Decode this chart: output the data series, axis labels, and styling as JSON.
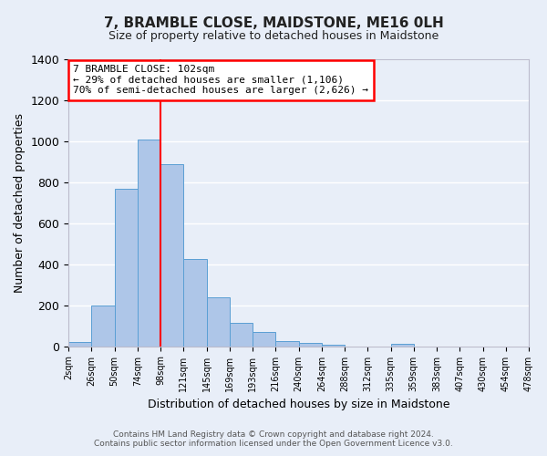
{
  "title": "7, BRAMBLE CLOSE, MAIDSTONE, ME16 0LH",
  "subtitle": "Size of property relative to detached houses in Maidstone",
  "xlabel": "Distribution of detached houses by size in Maidstone",
  "ylabel": "Number of detached properties",
  "tick_labels": [
    "2sqm",
    "26sqm",
    "50sqm",
    "74sqm",
    "98sqm",
    "121sqm",
    "145sqm",
    "169sqm",
    "193sqm",
    "216sqm",
    "240sqm",
    "264sqm",
    "288sqm",
    "312sqm",
    "335sqm",
    "359sqm",
    "383sqm",
    "407sqm",
    "430sqm",
    "454sqm",
    "478sqm"
  ],
  "bar_heights": [
    20,
    200,
    770,
    1010,
    890,
    425,
    240,
    115,
    70,
    25,
    15,
    8,
    0,
    0,
    10,
    0,
    0,
    0,
    0,
    0
  ],
  "bar_color": "#aec6e8",
  "bar_edge_color": "#5a9fd4",
  "background_color": "#e8eef8",
  "grid_color": "#ffffff",
  "vline_x": 4.0,
  "vline_color": "red",
  "annotation_title": "7 BRAMBLE CLOSE: 102sqm",
  "annotation_line1": "← 29% of detached houses are smaller (1,106)",
  "annotation_line2": "70% of semi-detached houses are larger (2,626) →",
  "annotation_box_color": "red",
  "footer_line1": "Contains HM Land Registry data © Crown copyright and database right 2024.",
  "footer_line2": "Contains public sector information licensed under the Open Government Licence v3.0.",
  "ylim": [
    0,
    1400
  ],
  "yticks": [
    0,
    200,
    400,
    600,
    800,
    1000,
    1200,
    1400
  ]
}
